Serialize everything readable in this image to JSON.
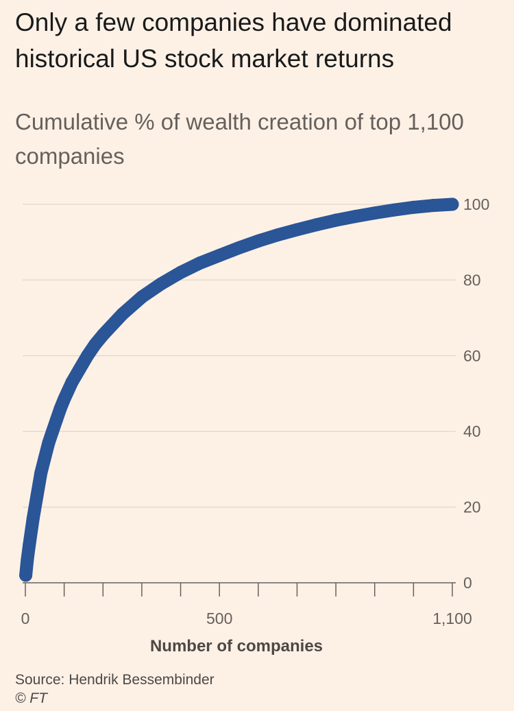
{
  "header": {
    "title": "Only a few companies have dominated historical US stock market returns",
    "subtitle": "Cumulative % of wealth creation of top 1,100 companies"
  },
  "footer": {
    "source": "Source: Hendrik Bessembinder",
    "credit": "© FT"
  },
  "colors": {
    "series": "#2A5597",
    "grid": "#E6D9CE",
    "axis": "#66605C",
    "background": "#FDF1E6"
  },
  "chart_data": {
    "type": "scatter",
    "title": "Only a few companies have dominated historical US stock market returns",
    "subtitle": "Cumulative % of wealth creation of top 1,100 companies",
    "xlabel": "Number of companies",
    "ylabel": "Cumulative % of wealth creation",
    "xlim": [
      0,
      1100
    ],
    "ylim": [
      0,
      100
    ],
    "x_ticks": [
      0,
      500,
      1100
    ],
    "x_tick_labels": [
      "0",
      "500",
      "1,100"
    ],
    "x_minor_ticks": [
      100,
      200,
      300,
      400,
      600,
      700,
      800,
      900,
      1000
    ],
    "y_ticks": [
      0,
      20,
      40,
      60,
      80,
      100
    ],
    "y_tick_labels": [
      "0",
      "20",
      "40",
      "60",
      "80",
      "100"
    ],
    "y_axis_side": "right",
    "grid": true,
    "series": [
      {
        "name": "Cumulative % of wealth creation",
        "x": [
          1,
          5,
          10,
          20,
          30,
          40,
          50,
          60,
          70,
          80,
          90,
          100,
          120,
          140,
          160,
          180,
          200,
          250,
          300,
          350,
          400,
          450,
          500,
          550,
          600,
          650,
          700,
          750,
          800,
          850,
          900,
          950,
          1000,
          1050,
          1100
        ],
        "values": [
          2,
          6,
          10,
          17,
          23,
          29,
          33,
          37,
          40,
          43,
          46,
          48.5,
          53,
          56.5,
          60,
          63,
          65.5,
          71,
          75.5,
          79,
          82,
          84.5,
          86.5,
          88.5,
          90.3,
          91.9,
          93.3,
          94.6,
          95.8,
          96.8,
          97.7,
          98.5,
          99.2,
          99.7,
          100
        ]
      }
    ]
  }
}
